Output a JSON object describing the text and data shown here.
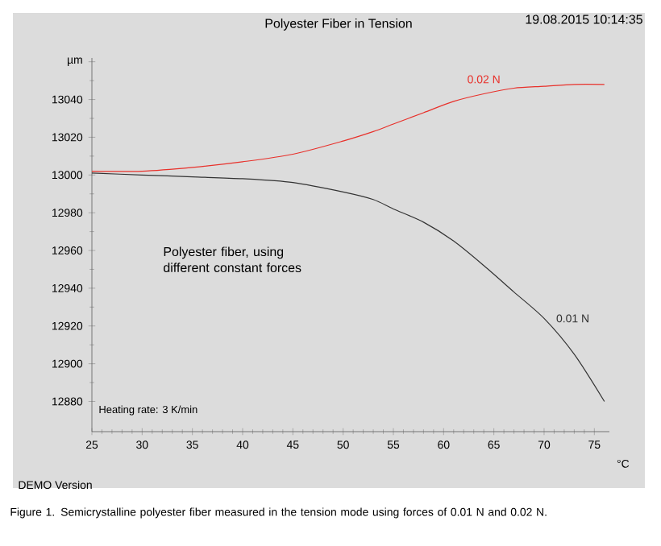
{
  "chart_data": {
    "type": "line",
    "title": "Polyester Fiber in Tension",
    "xlabel": "°C",
    "x": [
      25,
      30,
      35,
      40,
      45,
      50,
      53,
      55,
      58,
      61,
      64,
      67,
      70,
      73,
      76
    ],
    "series": [
      {
        "name": "0.01 N",
        "color": "#333333",
        "values": [
          13001,
          13000,
          12999,
          12998,
          12996,
          12991,
          12987,
          12982,
          12975,
          12965,
          12952,
          12938,
          12924,
          12905,
          12880
        ]
      },
      {
        "name": "0.02 N",
        "color": "#e8302a",
        "values": [
          13002,
          13002,
          13004,
          13007,
          13011,
          13018,
          13023,
          13027,
          13033,
          13039,
          13043,
          13046,
          13047,
          13048,
          13048
        ]
      }
    ],
    "xlim": [
      25,
      76.5
    ],
    "ylim": [
      12864,
      13062
    ],
    "xticks": [
      25,
      30,
      35,
      40,
      45,
      50,
      55,
      60,
      65,
      70,
      75
    ],
    "yticks": [
      12880,
      12900,
      12920,
      12940,
      12960,
      12980,
      13000,
      13020,
      13040,
      {
        "value": 13060,
        "label": "µm"
      }
    ],
    "grid": false,
    "legend": false,
    "marker": "none",
    "line_style": "solid",
    "annotations": [
      "19.08.2015 10:14:35",
      "Polyester fiber, using different constant forces",
      "Heating rate: 3 K/min",
      "DEMO Version",
      "Figure 1. Semicrystalline polyester fiber measured in the tension mode using forces of 0.01 N and 0.02 N."
    ]
  }
}
